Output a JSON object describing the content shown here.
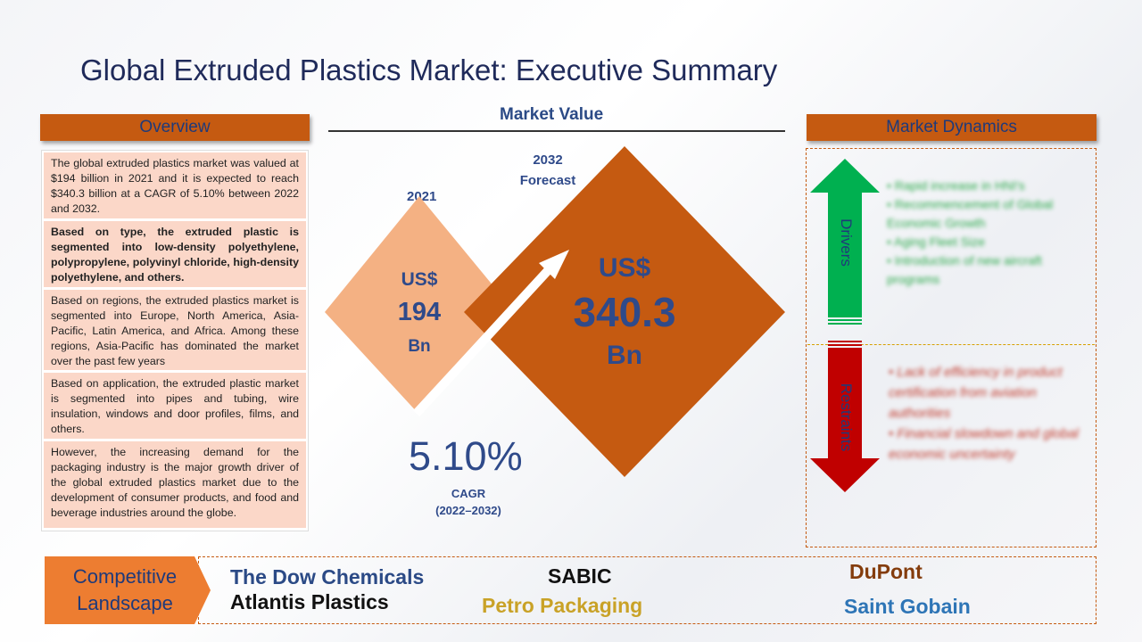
{
  "title": "Global Extruded Plastics Market: Executive Summary",
  "overview": {
    "header": "Overview",
    "paragraphs": [
      "The global extruded plastics market was valued at $194 billion in 2021 and it is expected to reach $340.3 billion at a CAGR of 5.10% between 2022 and 2032.",
      "Based on type, the extruded plastic is segmented into low-density polyethylene, polypropylene, polyvinyl chloride, high-density polyethylene, and others.",
      "Based on regions, the extruded plastics market is segmented into Europe, North America, Asia-Pacific, Latin America, and Africa. Among these regions, Asia-Pacific has dominated the market over the past few years",
      "Based on application, the extruded plastic market is segmented into pipes and tubing, wire insulation, windows and door profiles, films, and others.",
      "However, the increasing demand for the packaging industry is the major growth driver of the global extruded plastics market due to the development of consumer products, and food and beverage industries around the globe."
    ]
  },
  "market_value": {
    "header": "Market Value",
    "year_2021": "2021",
    "year_2032": "2032",
    "forecast": "Forecast",
    "v2021_currency": "US$",
    "v2021_value": "194",
    "v2021_unit": "Bn",
    "v2032_currency": "US$",
    "v2032_value": "340.3",
    "v2032_unit": "Bn",
    "cagr_value": "5.10%",
    "cagr_label": "CAGR",
    "cagr_period": "(2022–2032)"
  },
  "dynamics": {
    "header": "Market Dynamics",
    "drivers_label": "Drivers",
    "restraints_label": "Restraints",
    "drivers": [
      "Rapid increase in HNI's",
      "Recommencement of Global Economic Growth",
      "Aging Fleet Size",
      "Introduction of new aircraft programs"
    ],
    "restraints": [
      "Lack of efficiency in product certification from aviation authorities",
      "Financial slowdown and global economic uncertainty"
    ]
  },
  "competitive": {
    "label_line1": "Competitive",
    "label_line2": "Landscape",
    "companies": {
      "dow": "The Dow Chemicals",
      "atlantis": "Atlantis Plastics",
      "sabic": "SABIC",
      "petro": "Petro Packaging",
      "dupont": "DuPont",
      "saint": "Saint Gobain"
    }
  },
  "colors": {
    "accent": "#c55a11",
    "navy": "#1f2a5a",
    "light_orange": "#f4b183",
    "green": "#00b050",
    "red": "#c00000"
  }
}
